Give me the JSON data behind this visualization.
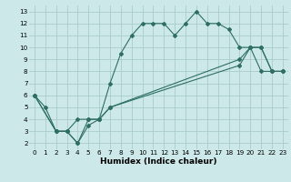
{
  "xlabel": "Humidex (Indice chaleur)",
  "background_color": "#cce8e8",
  "grid_color": "#aacccc",
  "line_color": "#2e6e64",
  "xlim": [
    -0.5,
    23.5
  ],
  "ylim": [
    1.5,
    13.5
  ],
  "xticks": [
    0,
    1,
    2,
    3,
    4,
    5,
    6,
    7,
    8,
    9,
    10,
    11,
    12,
    13,
    14,
    15,
    16,
    17,
    18,
    19,
    20,
    21,
    22,
    23
  ],
  "yticks": [
    2,
    3,
    4,
    5,
    6,
    7,
    8,
    9,
    10,
    11,
    12,
    13
  ],
  "line1_x": [
    0,
    1,
    2,
    3,
    4,
    5,
    6,
    7,
    8,
    9,
    10,
    11,
    12,
    13,
    14,
    15,
    16,
    17,
    18,
    19,
    20,
    21,
    22,
    23
  ],
  "line1_y": [
    6,
    5,
    3,
    3,
    2,
    4,
    4,
    7,
    9.5,
    11,
    12,
    12,
    12,
    11,
    12,
    13,
    12,
    12,
    11.5,
    10,
    10,
    8,
    8,
    8
  ],
  "line2_x": [
    0,
    2,
    3,
    4,
    5,
    6,
    7,
    19,
    20,
    21,
    22,
    23
  ],
  "line2_y": [
    6,
    3,
    3,
    4,
    4,
    4,
    5,
    9,
    10,
    10,
    8,
    8
  ],
  "line3_x": [
    0,
    2,
    3,
    4,
    5,
    6,
    7,
    19,
    20,
    21,
    22,
    23
  ],
  "line3_y": [
    6,
    3,
    3,
    2,
    3.5,
    4,
    5,
    8.5,
    10,
    10,
    8,
    8
  ],
  "xlabel_fontsize": 6.5,
  "tick_fontsize": 5.2
}
